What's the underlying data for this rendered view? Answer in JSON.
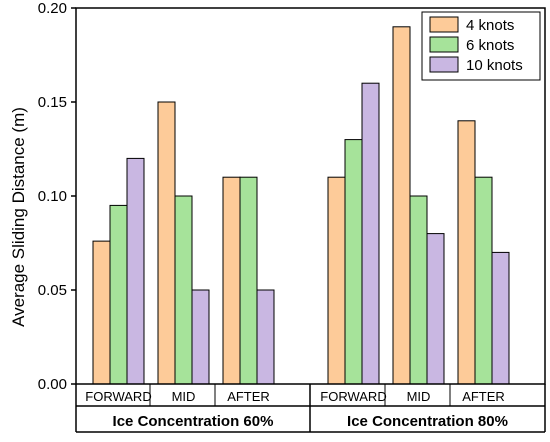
{
  "chart_data": {
    "type": "bar",
    "ylabel": "Average Sliding Distance (m)",
    "ylim": [
      0,
      0.2
    ],
    "yticks": [
      "0.00",
      "0.05",
      "0.10",
      "0.15",
      "0.20"
    ],
    "ytick_values": [
      0,
      0.05,
      0.1,
      0.15,
      0.2
    ],
    "groups": [
      {
        "label": "Ice Concentration 60%",
        "categories": [
          "FORWARD",
          "MID",
          "AFTER"
        ]
      },
      {
        "label": "Ice Concentration 80%",
        "categories": [
          "FORWARD",
          "MID",
          "AFTER"
        ]
      }
    ],
    "series": [
      {
        "name": "4 knots",
        "color": "#FDCB99",
        "values": [
          0.076,
          0.15,
          0.11,
          0.11,
          0.19,
          0.14
        ]
      },
      {
        "name": "6 knots",
        "color": "#A6E39A",
        "values": [
          0.095,
          0.1,
          0.11,
          0.13,
          0.1,
          0.11
        ]
      },
      {
        "name": "10 knots",
        "color": "#C9B7E2",
        "values": [
          0.12,
          0.05,
          0.05,
          0.16,
          0.08,
          0.07
        ]
      }
    ],
    "legend_position": "top-right",
    "grid": false
  }
}
